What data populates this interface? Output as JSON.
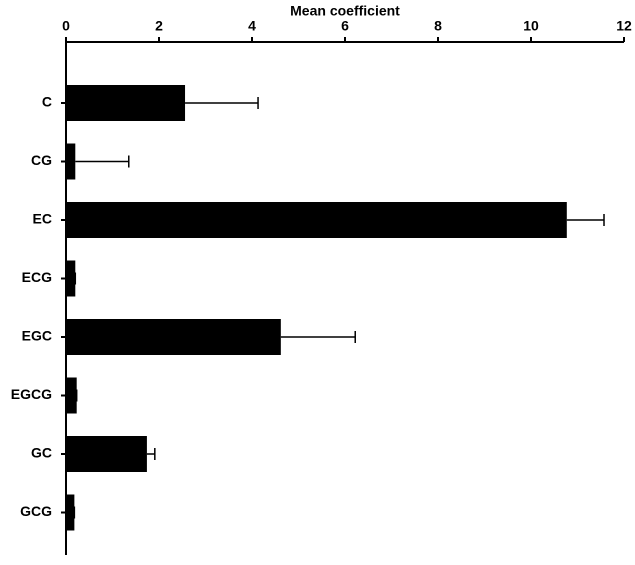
{
  "chart_data": {
    "type": "bar",
    "orientation": "horizontal",
    "x_label": "Mean coefficient",
    "categories": [
      "C",
      "CG",
      "EC",
      "ECG",
      "EGC",
      "EGCG",
      "GC",
      "GCG"
    ],
    "values": [
      2.56,
      0.2,
      10.77,
      0.2,
      4.62,
      0.23,
      1.74,
      0.18
    ],
    "errors": [
      1.57,
      1.15,
      0.8,
      0,
      1.6,
      0,
      0.17,
      0
    ],
    "color": "#000000",
    "xlim": [
      0,
      12
    ],
    "xticks": [
      0,
      2,
      4,
      6,
      8,
      10,
      12
    ],
    "grid": false
  }
}
